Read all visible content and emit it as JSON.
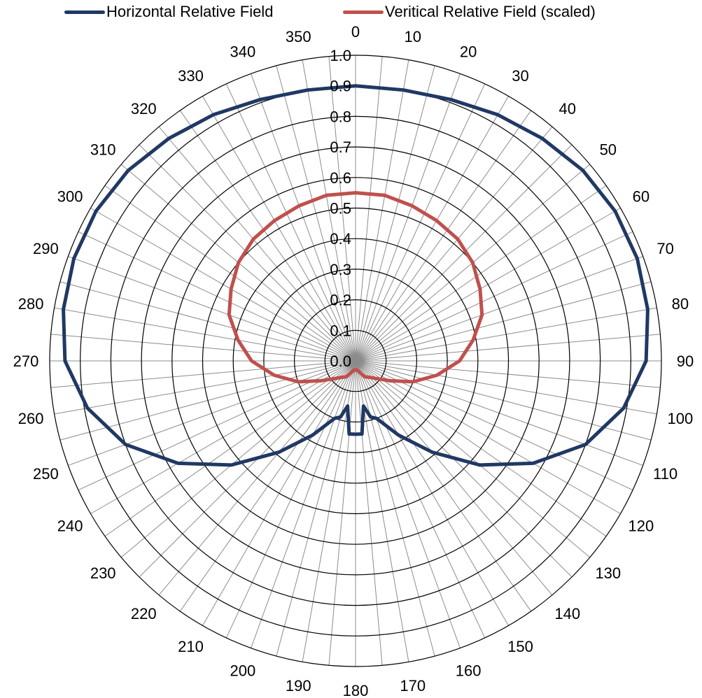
{
  "chart_data": {
    "type": "polar-line",
    "title": "",
    "radial_axis": {
      "min": 0,
      "max": 1.0,
      "ticks": [
        "0.0",
        "0.1",
        "0.2",
        "0.3",
        "0.4",
        "0.5",
        "0.6",
        "0.7",
        "0.8",
        "0.9",
        "1.0"
      ]
    },
    "angular_axis": {
      "unit": "degrees",
      "direction": "clockwise",
      "zero_at": "top",
      "minor_step": 5,
      "labels": [
        "0",
        "10",
        "20",
        "30",
        "40",
        "50",
        "60",
        "70",
        "80",
        "90",
        "100",
        "110",
        "120",
        "130",
        "140",
        "150",
        "160",
        "170",
        "180",
        "190",
        "200",
        "210",
        "220",
        "230",
        "240",
        "250",
        "260",
        "270",
        "280",
        "290",
        "300",
        "310",
        "320",
        "330",
        "340",
        "350"
      ]
    },
    "grid": true,
    "legend_position": "top",
    "series": [
      {
        "name": "Horizontal Relative Field",
        "color": "#203864",
        "angles": [
          0,
          10,
          20,
          30,
          40,
          50,
          60,
          70,
          80,
          90,
          100,
          110,
          120,
          130,
          140,
          150,
          160,
          165,
          170,
          175,
          180,
          185,
          190,
          195,
          200,
          210,
          220,
          230,
          240,
          250,
          260,
          270,
          280,
          290,
          300,
          310,
          320,
          330,
          340,
          350
        ],
        "values": [
          0.9,
          0.9,
          0.91,
          0.93,
          0.95,
          0.97,
          0.98,
          0.98,
          0.97,
          0.95,
          0.89,
          0.8,
          0.67,
          0.53,
          0.39,
          0.28,
          0.2,
          0.19,
          0.15,
          0.24,
          0.24,
          0.24,
          0.15,
          0.19,
          0.2,
          0.28,
          0.39,
          0.53,
          0.67,
          0.8,
          0.89,
          0.95,
          0.97,
          0.98,
          0.98,
          0.97,
          0.95,
          0.93,
          0.91,
          0.9
        ]
      },
      {
        "name": "Veritical Relative Field (scaled)",
        "color": "#c0504d",
        "angles": [
          0,
          10,
          20,
          30,
          40,
          50,
          60,
          70,
          80,
          90,
          100,
          110,
          120,
          130,
          140,
          150,
          160,
          170,
          180,
          190,
          200,
          210,
          220,
          230,
          240,
          250,
          260,
          270,
          280,
          290,
          300,
          310,
          320,
          330,
          340,
          350
        ],
        "values": [
          0.55,
          0.55,
          0.54,
          0.53,
          0.52,
          0.5,
          0.47,
          0.44,
          0.39,
          0.34,
          0.27,
          0.2,
          0.13,
          0.09,
          0.07,
          0.06,
          0.04,
          0.03,
          0.03,
          0.03,
          0.04,
          0.06,
          0.07,
          0.09,
          0.13,
          0.2,
          0.27,
          0.34,
          0.39,
          0.44,
          0.47,
          0.5,
          0.52,
          0.53,
          0.54,
          0.55
        ]
      }
    ]
  }
}
